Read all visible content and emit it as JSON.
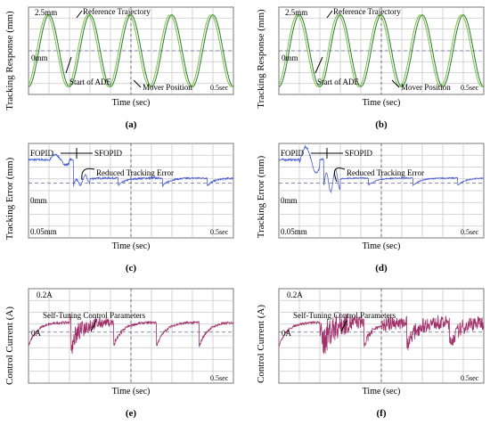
{
  "chart_data": [
    {
      "type": "line",
      "panel": "a",
      "caption": "(a)",
      "ylabel": "Tracking Response (mm)",
      "xlabel": "Time (sec)",
      "scale_y": "2.5mm",
      "scale_x": "0.5sec",
      "zero_label": "0mm",
      "annotations": [
        "Reference Trajectory",
        "Start of ADE",
        "Mover Position"
      ],
      "series": [
        {
          "name": "Reference Trajectory",
          "color": "#2a7a2a",
          "kind": "sine",
          "amplitude_mm": 2.5,
          "cycles": 5,
          "phase": 0,
          "noise": 0
        },
        {
          "name": "Mover Position",
          "color": "#7fc04a",
          "kind": "sine",
          "amplitude_mm": 2.5,
          "cycles": 5,
          "phase": 0.05,
          "noise": 0
        }
      ]
    },
    {
      "type": "line",
      "panel": "b",
      "caption": "(b)",
      "ylabel": "Tracking Response (mm)",
      "xlabel": "Time (sec)",
      "scale_y": "2.5mm",
      "scale_x": "0.5sec",
      "zero_label": "0mm",
      "annotations": [
        "Reference Trajectory",
        "Start of ADE",
        "Mover Position"
      ],
      "series": [
        {
          "name": "Reference Trajectory",
          "color": "#2a7a2a",
          "kind": "sine",
          "amplitude_mm": 2.5,
          "cycles": 5,
          "phase": 0,
          "noise": 0
        },
        {
          "name": "Mover Position",
          "color": "#7fc04a",
          "kind": "sine",
          "amplitude_mm": 2.5,
          "cycles": 5,
          "phase": 0.05,
          "noise": 0
        }
      ]
    },
    {
      "type": "line",
      "panel": "c",
      "caption": "(c)",
      "ylabel": "Tracking Error (mm)",
      "xlabel": "Time (sec)",
      "scale_y": "0.05mm",
      "scale_x": "0.5sec",
      "zero_label": "0mm",
      "annotations": [
        "FOPID",
        "SFOPID",
        "Reduced Tracking Error"
      ],
      "series": [
        {
          "name": "Tracking Error",
          "color": "#4a5fd0",
          "kind": "error",
          "spike": 0.4,
          "noise": 0.35
        }
      ]
    },
    {
      "type": "line",
      "panel": "d",
      "caption": "(d)",
      "ylabel": "Tracking Error (mm)",
      "xlabel": "Time (sec)",
      "scale_y": "0.05mm",
      "scale_x": "0.5sec",
      "zero_label": "0mm",
      "annotations": [
        "FOPID",
        "SFOPID",
        "Reduced Tracking Error"
      ],
      "series": [
        {
          "name": "Tracking Error",
          "color": "#4a5fd0",
          "kind": "error",
          "spike": 1.0,
          "noise": 0.2
        }
      ]
    },
    {
      "type": "line",
      "panel": "e",
      "caption": "(e)",
      "ylabel": "Control Current (A)",
      "xlabel": "Time (sec)",
      "scale_y": "0.2A",
      "scale_x": "0.5sec",
      "zero_label": "0A",
      "annotations": [
        "Self-Tuning Control Parameters"
      ],
      "series": [
        {
          "name": "Control Current",
          "color": "#a0306a",
          "kind": "current",
          "noise": 0.6
        }
      ]
    },
    {
      "type": "line",
      "panel": "f",
      "caption": "(f)",
      "ylabel": "Control Current (A)",
      "xlabel": "Time (sec)",
      "scale_y": "0.2A",
      "scale_x": "0.5sec",
      "zero_label": "0A",
      "annotations": [
        "Self-Tuning Control Parameters"
      ],
      "series": [
        {
          "name": "Control Current",
          "color": "#a0306a",
          "kind": "current",
          "noise": 1.0
        }
      ]
    }
  ]
}
